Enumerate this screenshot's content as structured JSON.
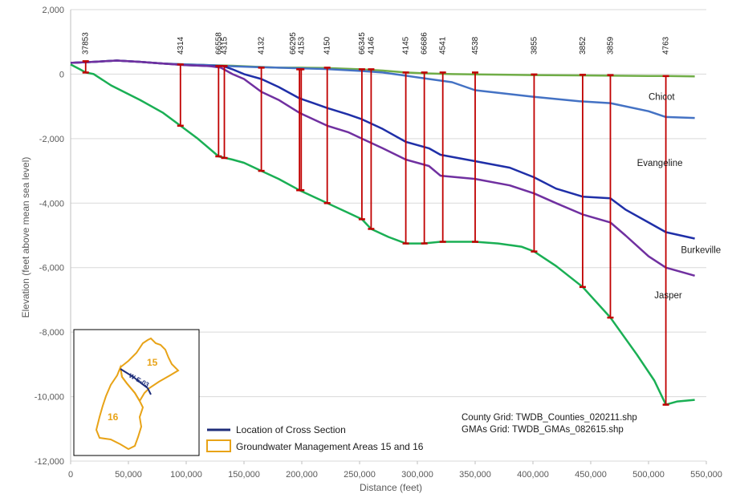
{
  "chart_data": {
    "type": "line",
    "xlabel": "Distance (feet)",
    "ylabel": "Elevation (feet above mean sea level)",
    "xlim": [
      0,
      550000
    ],
    "ylim": [
      -12000,
      2000
    ],
    "x_ticks": [
      "0",
      "50,000",
      "100,000",
      "150,000",
      "200,000",
      "250,000",
      "300,000",
      "350,000",
      "400,000",
      "450,000",
      "500,000",
      "550,000"
    ],
    "y_ticks": [
      "2,000",
      "0",
      "-2,000",
      "-4,000",
      "-6,000",
      "-8,000",
      "-10,000",
      "-12,000"
    ],
    "grid": "horizontal",
    "series": [
      {
        "key": "surface",
        "color": "#70ad47",
        "points": [
          [
            0,
            350
          ],
          [
            20000,
            380
          ],
          [
            40000,
            420
          ],
          [
            60000,
            380
          ],
          [
            80000,
            330
          ],
          [
            100000,
            300
          ],
          [
            120000,
            280
          ],
          [
            140000,
            260
          ],
          [
            160000,
            230
          ],
          [
            180000,
            200
          ],
          [
            200000,
            200
          ],
          [
            220000,
            190
          ],
          [
            250000,
            150
          ],
          [
            270000,
            110
          ],
          [
            290000,
            50
          ],
          [
            310000,
            20
          ],
          [
            330000,
            0
          ],
          [
            350000,
            -10
          ],
          [
            380000,
            -20
          ],
          [
            400000,
            -30
          ],
          [
            440000,
            -40
          ],
          [
            470000,
            -50
          ],
          [
            500000,
            -60
          ],
          [
            515000,
            -60
          ],
          [
            540000,
            -70
          ]
        ]
      },
      {
        "key": "chicot_base",
        "color": "#4472c4",
        "points": [
          [
            0,
            350
          ],
          [
            20000,
            380
          ],
          [
            40000,
            420
          ],
          [
            60000,
            380
          ],
          [
            80000,
            330
          ],
          [
            100000,
            300
          ],
          [
            120000,
            280
          ],
          [
            135000,
            250
          ],
          [
            160000,
            220
          ],
          [
            180000,
            200
          ],
          [
            200000,
            180
          ],
          [
            220000,
            160
          ],
          [
            250000,
            100
          ],
          [
            270000,
            50
          ],
          [
            290000,
            -50
          ],
          [
            310000,
            -150
          ],
          [
            330000,
            -250
          ],
          [
            350000,
            -500
          ],
          [
            380000,
            -620
          ],
          [
            400000,
            -700
          ],
          [
            440000,
            -840
          ],
          [
            467000,
            -900
          ],
          [
            500000,
            -1150
          ],
          [
            515000,
            -1330
          ],
          [
            540000,
            -1360
          ]
        ]
      },
      {
        "key": "evangeline_base",
        "color": "#1f2fa8",
        "points": [
          [
            0,
            350
          ],
          [
            20000,
            380
          ],
          [
            40000,
            420
          ],
          [
            60000,
            380
          ],
          [
            80000,
            330
          ],
          [
            100000,
            280
          ],
          [
            120000,
            250
          ],
          [
            132000,
            250
          ],
          [
            140000,
            150
          ],
          [
            150000,
            0
          ],
          [
            165000,
            -150
          ],
          [
            180000,
            -400
          ],
          [
            198000,
            -750
          ],
          [
            210000,
            -900
          ],
          [
            222000,
            -1050
          ],
          [
            240000,
            -1250
          ],
          [
            252000,
            -1400
          ],
          [
            270000,
            -1700
          ],
          [
            290000,
            -2100
          ],
          [
            310000,
            -2300
          ],
          [
            320000,
            -2500
          ],
          [
            350000,
            -2700
          ],
          [
            380000,
            -2900
          ],
          [
            401000,
            -3200
          ],
          [
            420000,
            -3550
          ],
          [
            443000,
            -3800
          ],
          [
            467000,
            -3850
          ],
          [
            480000,
            -4200
          ],
          [
            500000,
            -4600
          ],
          [
            515000,
            -4900
          ],
          [
            540000,
            -5100
          ]
        ]
      },
      {
        "key": "burkeville_base",
        "color": "#7030a0",
        "points": [
          [
            0,
            350
          ],
          [
            20000,
            380
          ],
          [
            40000,
            420
          ],
          [
            60000,
            380
          ],
          [
            80000,
            330
          ],
          [
            100000,
            280
          ],
          [
            120000,
            250
          ],
          [
            130000,
            200
          ],
          [
            140000,
            0
          ],
          [
            150000,
            -150
          ],
          [
            165000,
            -550
          ],
          [
            180000,
            -800
          ],
          [
            198000,
            -1200
          ],
          [
            210000,
            -1400
          ],
          [
            222000,
            -1600
          ],
          [
            240000,
            -1800
          ],
          [
            252000,
            -2000
          ],
          [
            270000,
            -2300
          ],
          [
            290000,
            -2650
          ],
          [
            310000,
            -2850
          ],
          [
            320000,
            -3150
          ],
          [
            350000,
            -3250
          ],
          [
            380000,
            -3450
          ],
          [
            401000,
            -3700
          ],
          [
            420000,
            -4000
          ],
          [
            443000,
            -4350
          ],
          [
            467000,
            -4600
          ],
          [
            480000,
            -5000
          ],
          [
            500000,
            -5650
          ],
          [
            515000,
            -6000
          ],
          [
            540000,
            -6250
          ]
        ]
      },
      {
        "key": "jasper_base",
        "color": "#1aaf54",
        "points": [
          [
            0,
            300
          ],
          [
            8000,
            150
          ],
          [
            13000,
            50
          ],
          [
            20000,
            0
          ],
          [
            35000,
            -350
          ],
          [
            60000,
            -800
          ],
          [
            80000,
            -1200
          ],
          [
            95000,
            -1600
          ],
          [
            110000,
            -2000
          ],
          [
            128000,
            -2550
          ],
          [
            140000,
            -2650
          ],
          [
            150000,
            -2750
          ],
          [
            165000,
            -3000
          ],
          [
            180000,
            -3250
          ],
          [
            198000,
            -3600
          ],
          [
            210000,
            -3800
          ],
          [
            222000,
            -4000
          ],
          [
            240000,
            -4300
          ],
          [
            252000,
            -4500
          ],
          [
            260000,
            -4800
          ],
          [
            275000,
            -5050
          ],
          [
            290000,
            -5250
          ],
          [
            305000,
            -5250
          ],
          [
            320000,
            -5200
          ],
          [
            350000,
            -5200
          ],
          [
            370000,
            -5250
          ],
          [
            390000,
            -5350
          ],
          [
            401000,
            -5500
          ],
          [
            420000,
            -5950
          ],
          [
            443000,
            -6600
          ],
          [
            467000,
            -7550
          ],
          [
            490000,
            -8700
          ],
          [
            505000,
            -9500
          ],
          [
            515000,
            -10250
          ],
          [
            525000,
            -10150
          ],
          [
            540000,
            -10100
          ]
        ]
      }
    ],
    "wells": [
      {
        "label": "37853",
        "x": 13000,
        "top": 400,
        "bottom": 50
      },
      {
        "label": "4314",
        "x": 95000,
        "top": 300,
        "bottom": -1600
      },
      {
        "label": "66558",
        "x": 128000,
        "top": 250,
        "bottom": -2550
      },
      {
        "label": "4315",
        "x": 133000,
        "top": 250,
        "bottom": -2600
      },
      {
        "label": "4132",
        "x": 165000,
        "top": 200,
        "bottom": -3000
      },
      {
        "label": "66295",
        "x": 198000,
        "top": 150,
        "bottom": -3600
      },
      {
        "label": "4153",
        "x": 199500,
        "top": 150,
        "bottom": -3600
      },
      {
        "label": "4150",
        "x": 222000,
        "top": 200,
        "bottom": -4000
      },
      {
        "label": "66345",
        "x": 252000,
        "top": 150,
        "bottom": -4500
      },
      {
        "label": "4146",
        "x": 260000,
        "top": 150,
        "bottom": -4800
      },
      {
        "label": "4145",
        "x": 290000,
        "top": 50,
        "bottom": -5250
      },
      {
        "label": "66686",
        "x": 306000,
        "top": 50,
        "bottom": -5250
      },
      {
        "label": "4541",
        "x": 322000,
        "top": 50,
        "bottom": -5200
      },
      {
        "label": "4538",
        "x": 350000,
        "top": 50,
        "bottom": -5200
      },
      {
        "label": "3855",
        "x": 401000,
        "top": -10,
        "bottom": -5500
      },
      {
        "label": "3852",
        "x": 443000,
        "top": -20,
        "bottom": -6600
      },
      {
        "label": "3859",
        "x": 467000,
        "top": -30,
        "bottom": -7550
      },
      {
        "label": "4763",
        "x": 515000,
        "top": -60,
        "bottom": -10250
      }
    ],
    "annotations": [
      {
        "text": "Chicot",
        "x": 500000,
        "y": -800
      },
      {
        "text": "Evangeline",
        "x": 490000,
        "y": -2850
      },
      {
        "text": "Burkeville",
        "x": 528000,
        "y": -5550
      },
      {
        "text": "Jasper",
        "x": 505000,
        "y": -6950
      }
    ]
  },
  "notes": {
    "county_grid": "County Grid: TWDB_Counties_020211.shp",
    "gma_grid": "GMAs Grid: TWDB_GMAs_082615.shp"
  },
  "legend": {
    "cross_section": "Location of Cross Section",
    "gma": "Groundwater Management Areas 15 and 16"
  },
  "inset_map": {
    "label_15": "15",
    "label_16": "16",
    "line_label": "W-E-03"
  },
  "colors": {
    "well_line": "#c00000",
    "gma_outline": "#e8a317",
    "cross_section": "#1f2e7a"
  }
}
